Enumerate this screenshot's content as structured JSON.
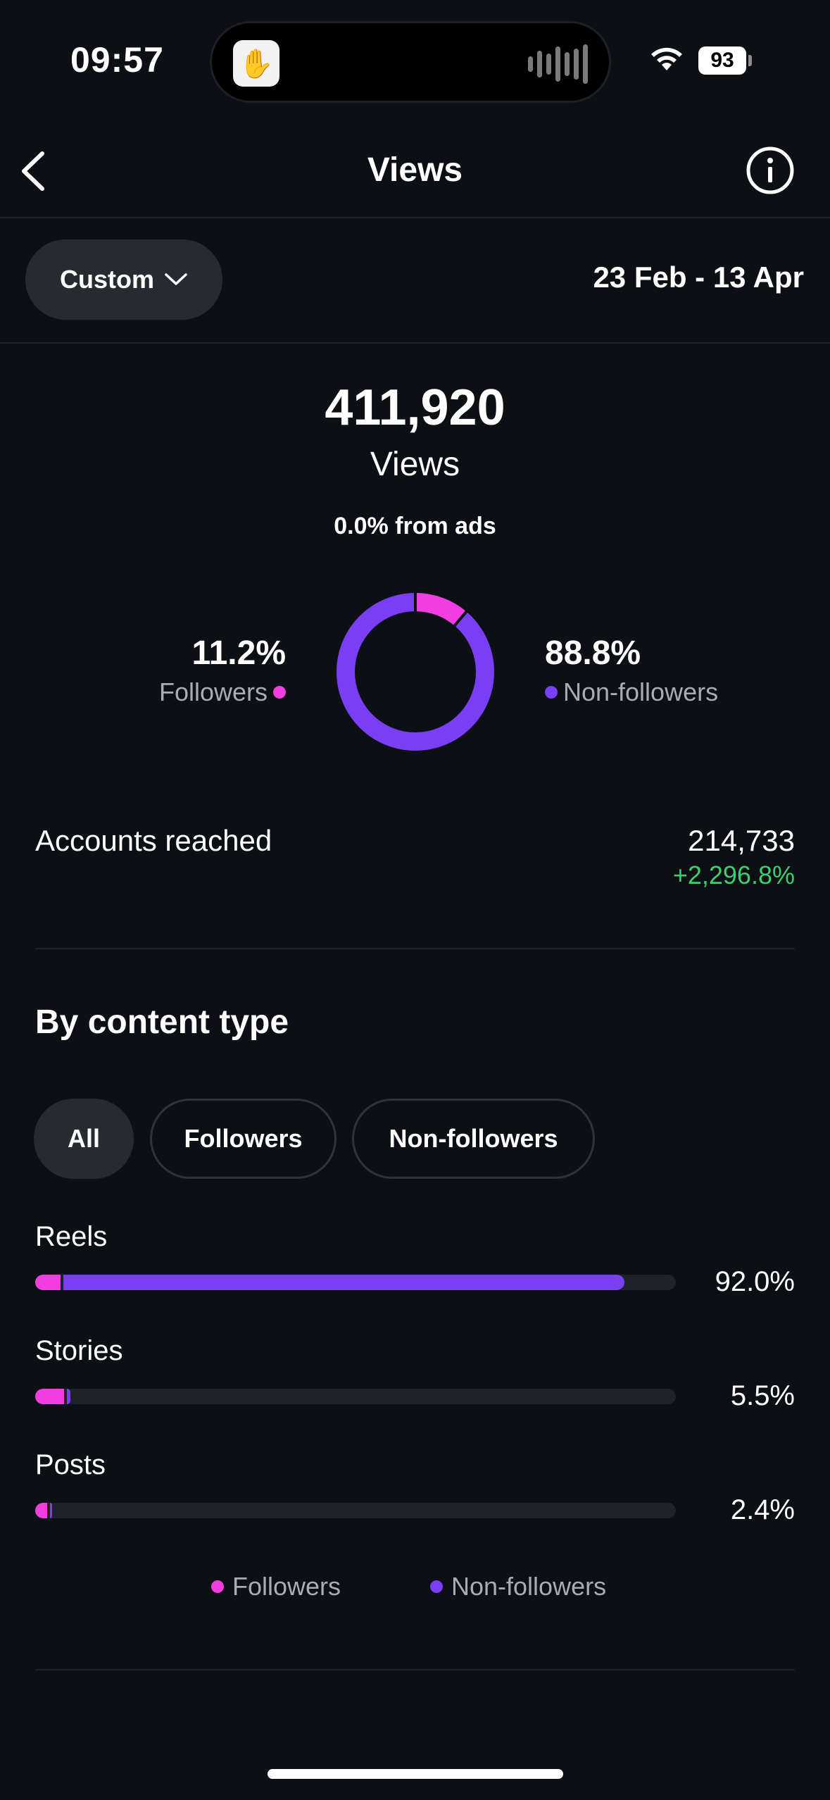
{
  "status_bar": {
    "time": "09:57",
    "battery": "93"
  },
  "header": {
    "title": "Views"
  },
  "filter": {
    "range_button": "Custom",
    "date_range": "23 Feb - 13 Apr"
  },
  "summary": {
    "total": "411,920",
    "total_label": "Views",
    "ads_note": "0.0% from ads",
    "followers_pct": "11.2%",
    "followers_label": "Followers",
    "non_followers_pct": "88.8%",
    "non_followers_label": "Non-followers",
    "followers_fraction": 0.112
  },
  "reach": {
    "label": "Accounts reached",
    "value": "214,733",
    "change": "+2,296.8%"
  },
  "content_type": {
    "title": "By content type",
    "chips": [
      "All",
      "Followers",
      "Non-followers"
    ],
    "active_chip": "All",
    "rows": [
      {
        "label": "Reels",
        "pct_text": "92.0%",
        "total": 92.0,
        "followers": 4.0
      },
      {
        "label": "Stories",
        "pct_text": "5.5%",
        "total": 5.5,
        "followers": 4.5
      },
      {
        "label": "Posts",
        "pct_text": "2.4%",
        "total": 2.4,
        "followers": 1.9
      }
    ],
    "legend": {
      "followers": "Followers",
      "non_followers": "Non-followers"
    }
  },
  "colors": {
    "followers": "#f03ee0",
    "non_followers": "#7a3ff5",
    "positive": "#3ccf6e"
  }
}
